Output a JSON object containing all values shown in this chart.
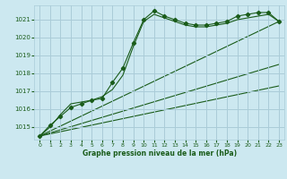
{
  "title": "Graphe pression niveau de la mer (hPa)",
  "bg_color": "#cce8f0",
  "grid_color": "#aaccd8",
  "line_color": "#1a5c1a",
  "xlim": [
    -0.5,
    23.5
  ],
  "ylim": [
    1014.3,
    1021.8
  ],
  "yticks": [
    1015,
    1016,
    1017,
    1018,
    1019,
    1020,
    1021
  ],
  "xticks": [
    0,
    1,
    2,
    3,
    4,
    5,
    6,
    7,
    8,
    9,
    10,
    11,
    12,
    13,
    14,
    15,
    16,
    17,
    18,
    19,
    20,
    21,
    22,
    23
  ],
  "series_main": {
    "x": [
      0,
      1,
      2,
      3,
      4,
      5,
      6,
      7,
      8,
      9,
      10,
      11,
      12,
      13,
      14,
      15,
      16,
      17,
      18,
      19,
      20,
      21,
      22,
      23
    ],
    "y": [
      1014.5,
      1015.1,
      1015.6,
      1016.1,
      1016.3,
      1016.5,
      1016.6,
      1017.5,
      1018.3,
      1019.7,
      1021.0,
      1021.5,
      1021.2,
      1021.0,
      1020.8,
      1020.7,
      1020.7,
      1020.8,
      1020.9,
      1021.2,
      1021.3,
      1021.4,
      1021.4,
      1020.9
    ]
  },
  "series_smooth": {
    "x": [
      0,
      1,
      2,
      3,
      4,
      5,
      6,
      7,
      8,
      9,
      10,
      11,
      12,
      13,
      14,
      15,
      16,
      17,
      18,
      19,
      20,
      21,
      22,
      23
    ],
    "y": [
      1014.5,
      1015.0,
      1015.7,
      1016.3,
      1016.4,
      1016.5,
      1016.7,
      1017.1,
      1017.9,
      1019.5,
      1020.9,
      1021.3,
      1021.1,
      1020.9,
      1020.7,
      1020.6,
      1020.6,
      1020.7,
      1020.8,
      1021.0,
      1021.1,
      1021.2,
      1021.3,
      1020.9
    ]
  },
  "linear_lines": [
    {
      "x": [
        0,
        23
      ],
      "y": [
        1014.5,
        1020.9
      ]
    },
    {
      "x": [
        0,
        23
      ],
      "y": [
        1014.5,
        1018.5
      ]
    },
    {
      "x": [
        0,
        23
      ],
      "y": [
        1014.5,
        1017.3
      ]
    }
  ]
}
